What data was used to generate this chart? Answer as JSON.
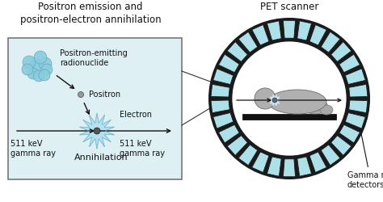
{
  "title_left": "Positron emission and\npositron-electron annihilation",
  "title_right": "PET scanner",
  "label_radionuclide": "Positron-emitting\nradionuclide",
  "label_positron": "Positron",
  "label_electron": "Electron",
  "label_annihilation": "Annihilation",
  "label_511_left": "511 keV\ngamma ray",
  "label_511_right": "511 keV\ngamma ray",
  "label_gamma_det": "Gamma ray\ndetectors",
  "bg_color": "#ffffff",
  "box_facecolor": "#dff0f5",
  "ring_dark_color": "#1a1a1a",
  "detector_color": "#aee0ea",
  "detector_border": "#1a1a1a",
  "radionuclide_color": "#88ccdd",
  "annihilation_color": "#aaddee",
  "patient_color": "#b0b0b0",
  "inner_bg": "#ffffff",
  "arrow_color": "#111111",
  "text_color": "#111111",
  "font_size_title": 8.5,
  "font_size_label": 7.0,
  "font_size_annihilation": 8.0
}
